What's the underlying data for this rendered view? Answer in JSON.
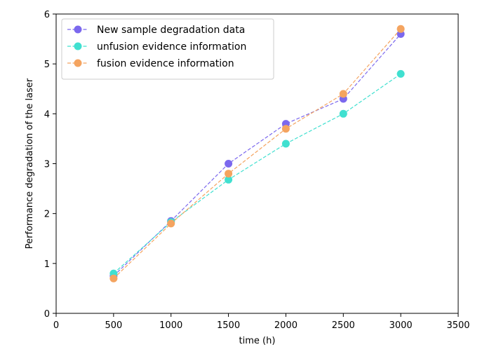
{
  "chart_data": {
    "type": "line",
    "title": "",
    "xlabel": "time  (h)",
    "ylabel": "Performance degradation of the laser",
    "xlim": [
      0,
      3500
    ],
    "ylim": [
      0,
      6
    ],
    "xticks": [
      0,
      500,
      1000,
      1500,
      2000,
      2500,
      3000,
      3500
    ],
    "yticks": [
      0,
      1,
      2,
      3,
      4,
      5,
      6
    ],
    "grid": false,
    "legend_position": "upper-left",
    "x": [
      500,
      1000,
      1500,
      2000,
      2500,
      3000
    ],
    "series": [
      {
        "name": "New sample degradation data",
        "color": "#7b68ee",
        "values": [
          0.75,
          1.85,
          3.0,
          3.8,
          4.3,
          5.6
        ]
      },
      {
        "name": "unfusion evidence information",
        "color": "#40e0d0",
        "values": [
          0.8,
          1.83,
          2.68,
          3.4,
          4.0,
          4.8
        ]
      },
      {
        "name": "fusion evidence information",
        "color": "#f4a460",
        "values": [
          0.7,
          1.8,
          2.8,
          3.7,
          4.4,
          5.7
        ]
      }
    ]
  }
}
